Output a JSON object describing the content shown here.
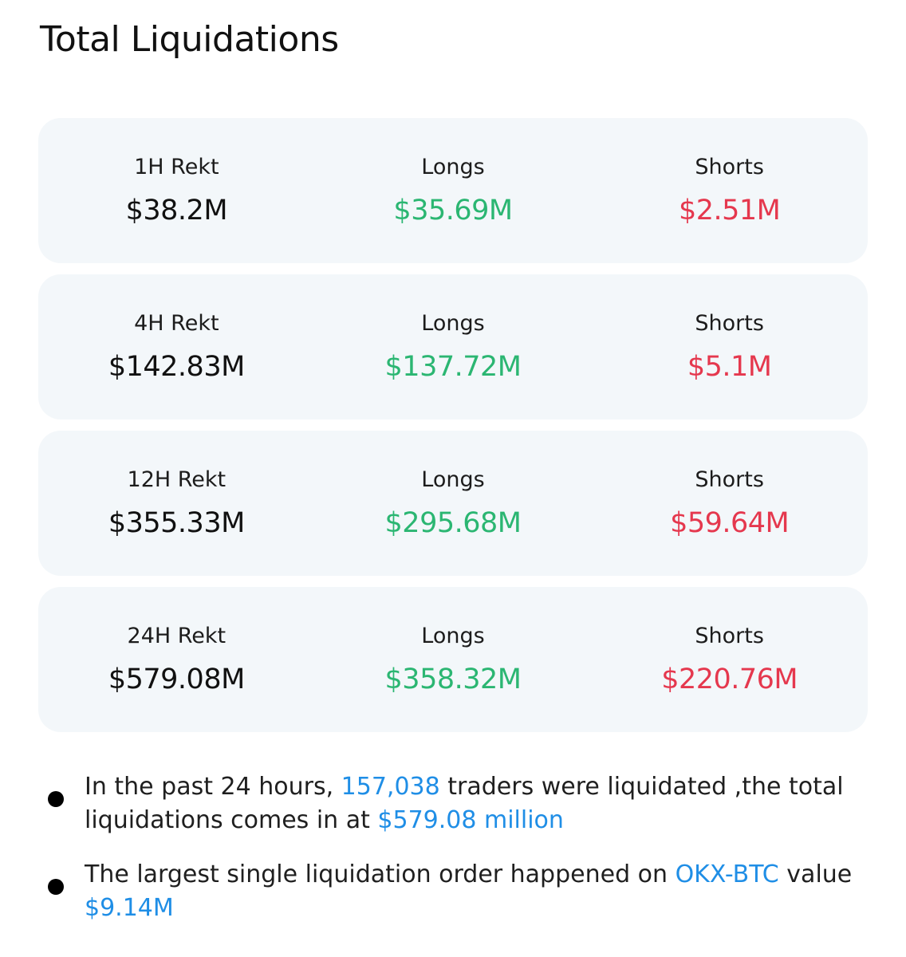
{
  "title": "Total Liquidations",
  "colors": {
    "longs": "#2bb672",
    "shorts": "#e5384e",
    "highlight": "#1f8ee6",
    "card_bg": "#f3f7fa"
  },
  "rows": [
    {
      "period_label": "1H Rekt",
      "total": "$38.2M",
      "longs_label": "Longs",
      "longs": "$35.69M",
      "shorts_label": "Shorts",
      "shorts": "$2.51M"
    },
    {
      "period_label": "4H Rekt",
      "total": "$142.83M",
      "longs_label": "Longs",
      "longs": "$137.72M",
      "shorts_label": "Shorts",
      "shorts": "$5.1M"
    },
    {
      "period_label": "12H Rekt",
      "total": "$355.33M",
      "longs_label": "Longs",
      "longs": "$295.68M",
      "shorts_label": "Shorts",
      "shorts": "$59.64M"
    },
    {
      "period_label": "24H Rekt",
      "total": "$579.08M",
      "longs_label": "Longs",
      "longs": "$358.32M",
      "shorts_label": "Shorts",
      "shorts": "$220.76M"
    }
  ],
  "notes": [
    {
      "part1": "In the past 24 hours, ",
      "traders": "157,038",
      "part2": " traders were liquidated ,the total liquidations comes in at ",
      "amount": "$579.08 million"
    },
    {
      "part1": "The largest single liquidation order happened on ",
      "pair": "OKX-BTC",
      "part2": " value ",
      "amount": "$9.14M"
    }
  ]
}
